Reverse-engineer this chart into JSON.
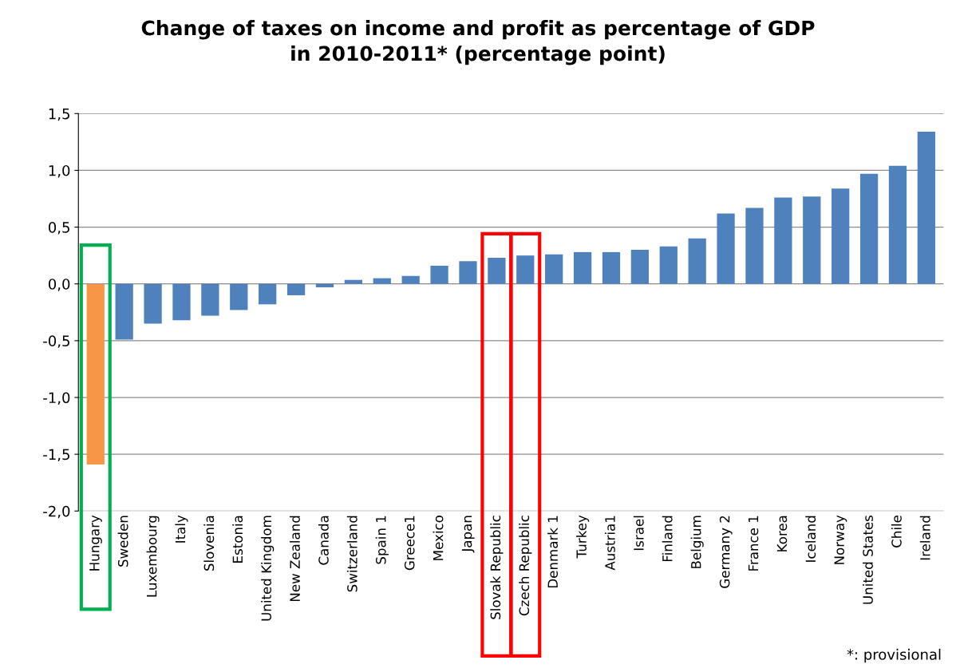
{
  "chart_data": {
    "type": "bar",
    "title": "Change of taxes on income and profit as percentage of GDP\nin 2010-2011* (percentage point)",
    "categories": [
      "Hungary",
      "Sweden",
      "Luxembourg",
      "Italy",
      "Slovenia",
      "Estonia",
      "United Kingdom",
      "New Zealand",
      "Canada",
      "Switzerland",
      "Spain 1",
      "Greece1",
      "Mexico",
      "Japan",
      "Slovak Republic",
      "Czech Republic",
      "Denmark 1",
      "Turkey",
      "Austria1",
      "Israel",
      "Finland",
      "Belgium",
      "Germany 2",
      "France 1",
      "Korea",
      "Iceland",
      "Norway",
      "United States",
      "Chile",
      "Ireland"
    ],
    "values": [
      -1.59,
      -0.49,
      -0.35,
      -0.32,
      -0.28,
      -0.23,
      -0.18,
      -0.1,
      -0.03,
      0.035,
      0.05,
      0.07,
      0.16,
      0.2,
      0.23,
      0.25,
      0.26,
      0.28,
      0.28,
      0.3,
      0.33,
      0.4,
      0.62,
      0.67,
      0.76,
      0.77,
      0.84,
      0.97,
      1.04,
      1.34
    ],
    "colors": [
      "#f79646",
      "#4f81bd",
      "#4f81bd",
      "#4f81bd",
      "#4f81bd",
      "#4f81bd",
      "#4f81bd",
      "#4f81bd",
      "#4f81bd",
      "#4f81bd",
      "#4f81bd",
      "#4f81bd",
      "#4f81bd",
      "#4f81bd",
      "#4f81bd",
      "#4f81bd",
      "#4f81bd",
      "#4f81bd",
      "#4f81bd",
      "#4f81bd",
      "#4f81bd",
      "#4f81bd",
      "#4f81bd",
      "#4f81bd",
      "#4f81bd",
      "#4f81bd",
      "#4f81bd",
      "#4f81bd",
      "#4f81bd",
      "#4f81bd"
    ],
    "ylim": [
      -2.0,
      1.5
    ],
    "yticks": [
      {
        "value": -2.0,
        "label": "-2,0"
      },
      {
        "value": -1.5,
        "label": "-1,5"
      },
      {
        "value": -1.0,
        "label": "-1,0"
      },
      {
        "value": -0.5,
        "label": "-0,5"
      },
      {
        "value": 0.0,
        "label": "0,0"
      },
      {
        "value": 0.5,
        "label": "0,5"
      },
      {
        "value": 1.0,
        "label": "1,0"
      },
      {
        "value": 1.5,
        "label": "1,5"
      }
    ],
    "grid": "y",
    "annotations": [
      "*: provisional"
    ]
  }
}
